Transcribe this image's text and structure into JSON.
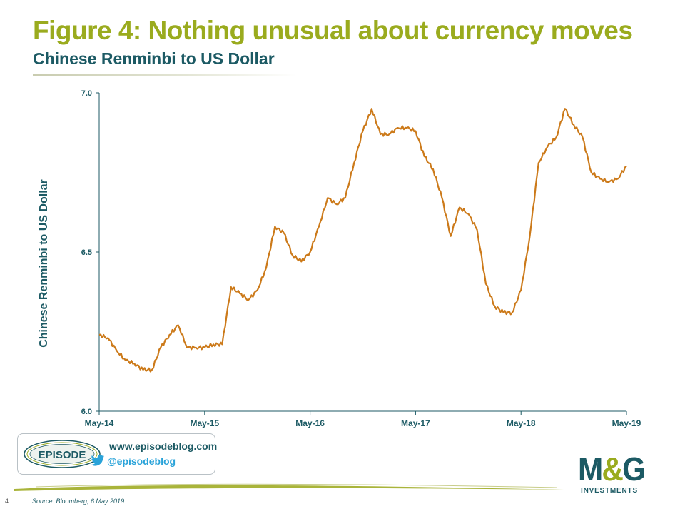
{
  "header": {
    "title": "Figure 4: Nothing unusual about currency moves",
    "subtitle": "Chinese Renminbi to US Dollar"
  },
  "footer": {
    "page_number": "4",
    "source": "Source: Bloomberg, 6 May 2019"
  },
  "badge": {
    "logo_text": "EPISODE",
    "url": "www.episodeblog.com",
    "twitter_handle": "@episodeblog",
    "icon": "twitter-bird-icon"
  },
  "brand": {
    "logo_main_left": "M",
    "logo_amp": "&",
    "logo_main_right": "G",
    "logo_sub": "INVESTMENTS"
  },
  "colors": {
    "title": "#9aab1e",
    "subtitle": "#1c5a64",
    "line": "#cc7a1a",
    "axis": "#1c5a64",
    "twitter": "#2aa3d9"
  },
  "chart_data": {
    "type": "line",
    "title": "",
    "xlabel": "",
    "ylabel": "Chinese Renminbi to US Dollar",
    "ylim": [
      6.0,
      7.0
    ],
    "yticks": [
      "6.0",
      "6.5",
      "7.0"
    ],
    "xticks": [
      "May-14",
      "May-15",
      "May-16",
      "May-17",
      "May-18",
      "May-19"
    ],
    "xlim": [
      "2014-05",
      "2019-05"
    ],
    "grid": false,
    "legend": "none",
    "series": [
      {
        "name": "",
        "points": [
          [
            "2014-05",
            6.24
          ],
          [
            "2014-06",
            6.23
          ],
          [
            "2014-07",
            6.19
          ],
          [
            "2014-08",
            6.16
          ],
          [
            "2014-09",
            6.15
          ],
          [
            "2014-10",
            6.13
          ],
          [
            "2014-11",
            6.13
          ],
          [
            "2014-12",
            6.2
          ],
          [
            "2015-01",
            6.24
          ],
          [
            "2015-02",
            6.27
          ],
          [
            "2015-03",
            6.2
          ],
          [
            "2015-04",
            6.2
          ],
          [
            "2015-05",
            6.2
          ],
          [
            "2015-06",
            6.21
          ],
          [
            "2015-07",
            6.21
          ],
          [
            "2015-08",
            6.39
          ],
          [
            "2015-09",
            6.37
          ],
          [
            "2015-10",
            6.35
          ],
          [
            "2015-11",
            6.38
          ],
          [
            "2015-12",
            6.45
          ],
          [
            "2016-01",
            6.58
          ],
          [
            "2016-02",
            6.56
          ],
          [
            "2016-03",
            6.49
          ],
          [
            "2016-04",
            6.47
          ],
          [
            "2016-05",
            6.5
          ],
          [
            "2016-06",
            6.58
          ],
          [
            "2016-07",
            6.67
          ],
          [
            "2016-08",
            6.65
          ],
          [
            "2016-09",
            6.67
          ],
          [
            "2016-10",
            6.78
          ],
          [
            "2016-11",
            6.88
          ],
          [
            "2016-12",
            6.95
          ],
          [
            "2017-01",
            6.87
          ],
          [
            "2017-02",
            6.87
          ],
          [
            "2017-03",
            6.89
          ],
          [
            "2017-04",
            6.89
          ],
          [
            "2017-05",
            6.88
          ],
          [
            "2017-06",
            6.8
          ],
          [
            "2017-07",
            6.76
          ],
          [
            "2017-08",
            6.67
          ],
          [
            "2017-09",
            6.55
          ],
          [
            "2017-10",
            6.64
          ],
          [
            "2017-11",
            6.62
          ],
          [
            "2017-12",
            6.57
          ],
          [
            "2018-01",
            6.4
          ],
          [
            "2018-02",
            6.33
          ],
          [
            "2018-03",
            6.31
          ],
          [
            "2018-04",
            6.31
          ],
          [
            "2018-05",
            6.38
          ],
          [
            "2018-06",
            6.55
          ],
          [
            "2018-07",
            6.78
          ],
          [
            "2018-08",
            6.83
          ],
          [
            "2018-09",
            6.86
          ],
          [
            "2018-10",
            6.95
          ],
          [
            "2018-11",
            6.9
          ],
          [
            "2018-12",
            6.86
          ],
          [
            "2019-01",
            6.75
          ],
          [
            "2019-02",
            6.73
          ],
          [
            "2019-03",
            6.72
          ],
          [
            "2019-04",
            6.73
          ],
          [
            "2019-05",
            6.77
          ]
        ]
      }
    ]
  }
}
